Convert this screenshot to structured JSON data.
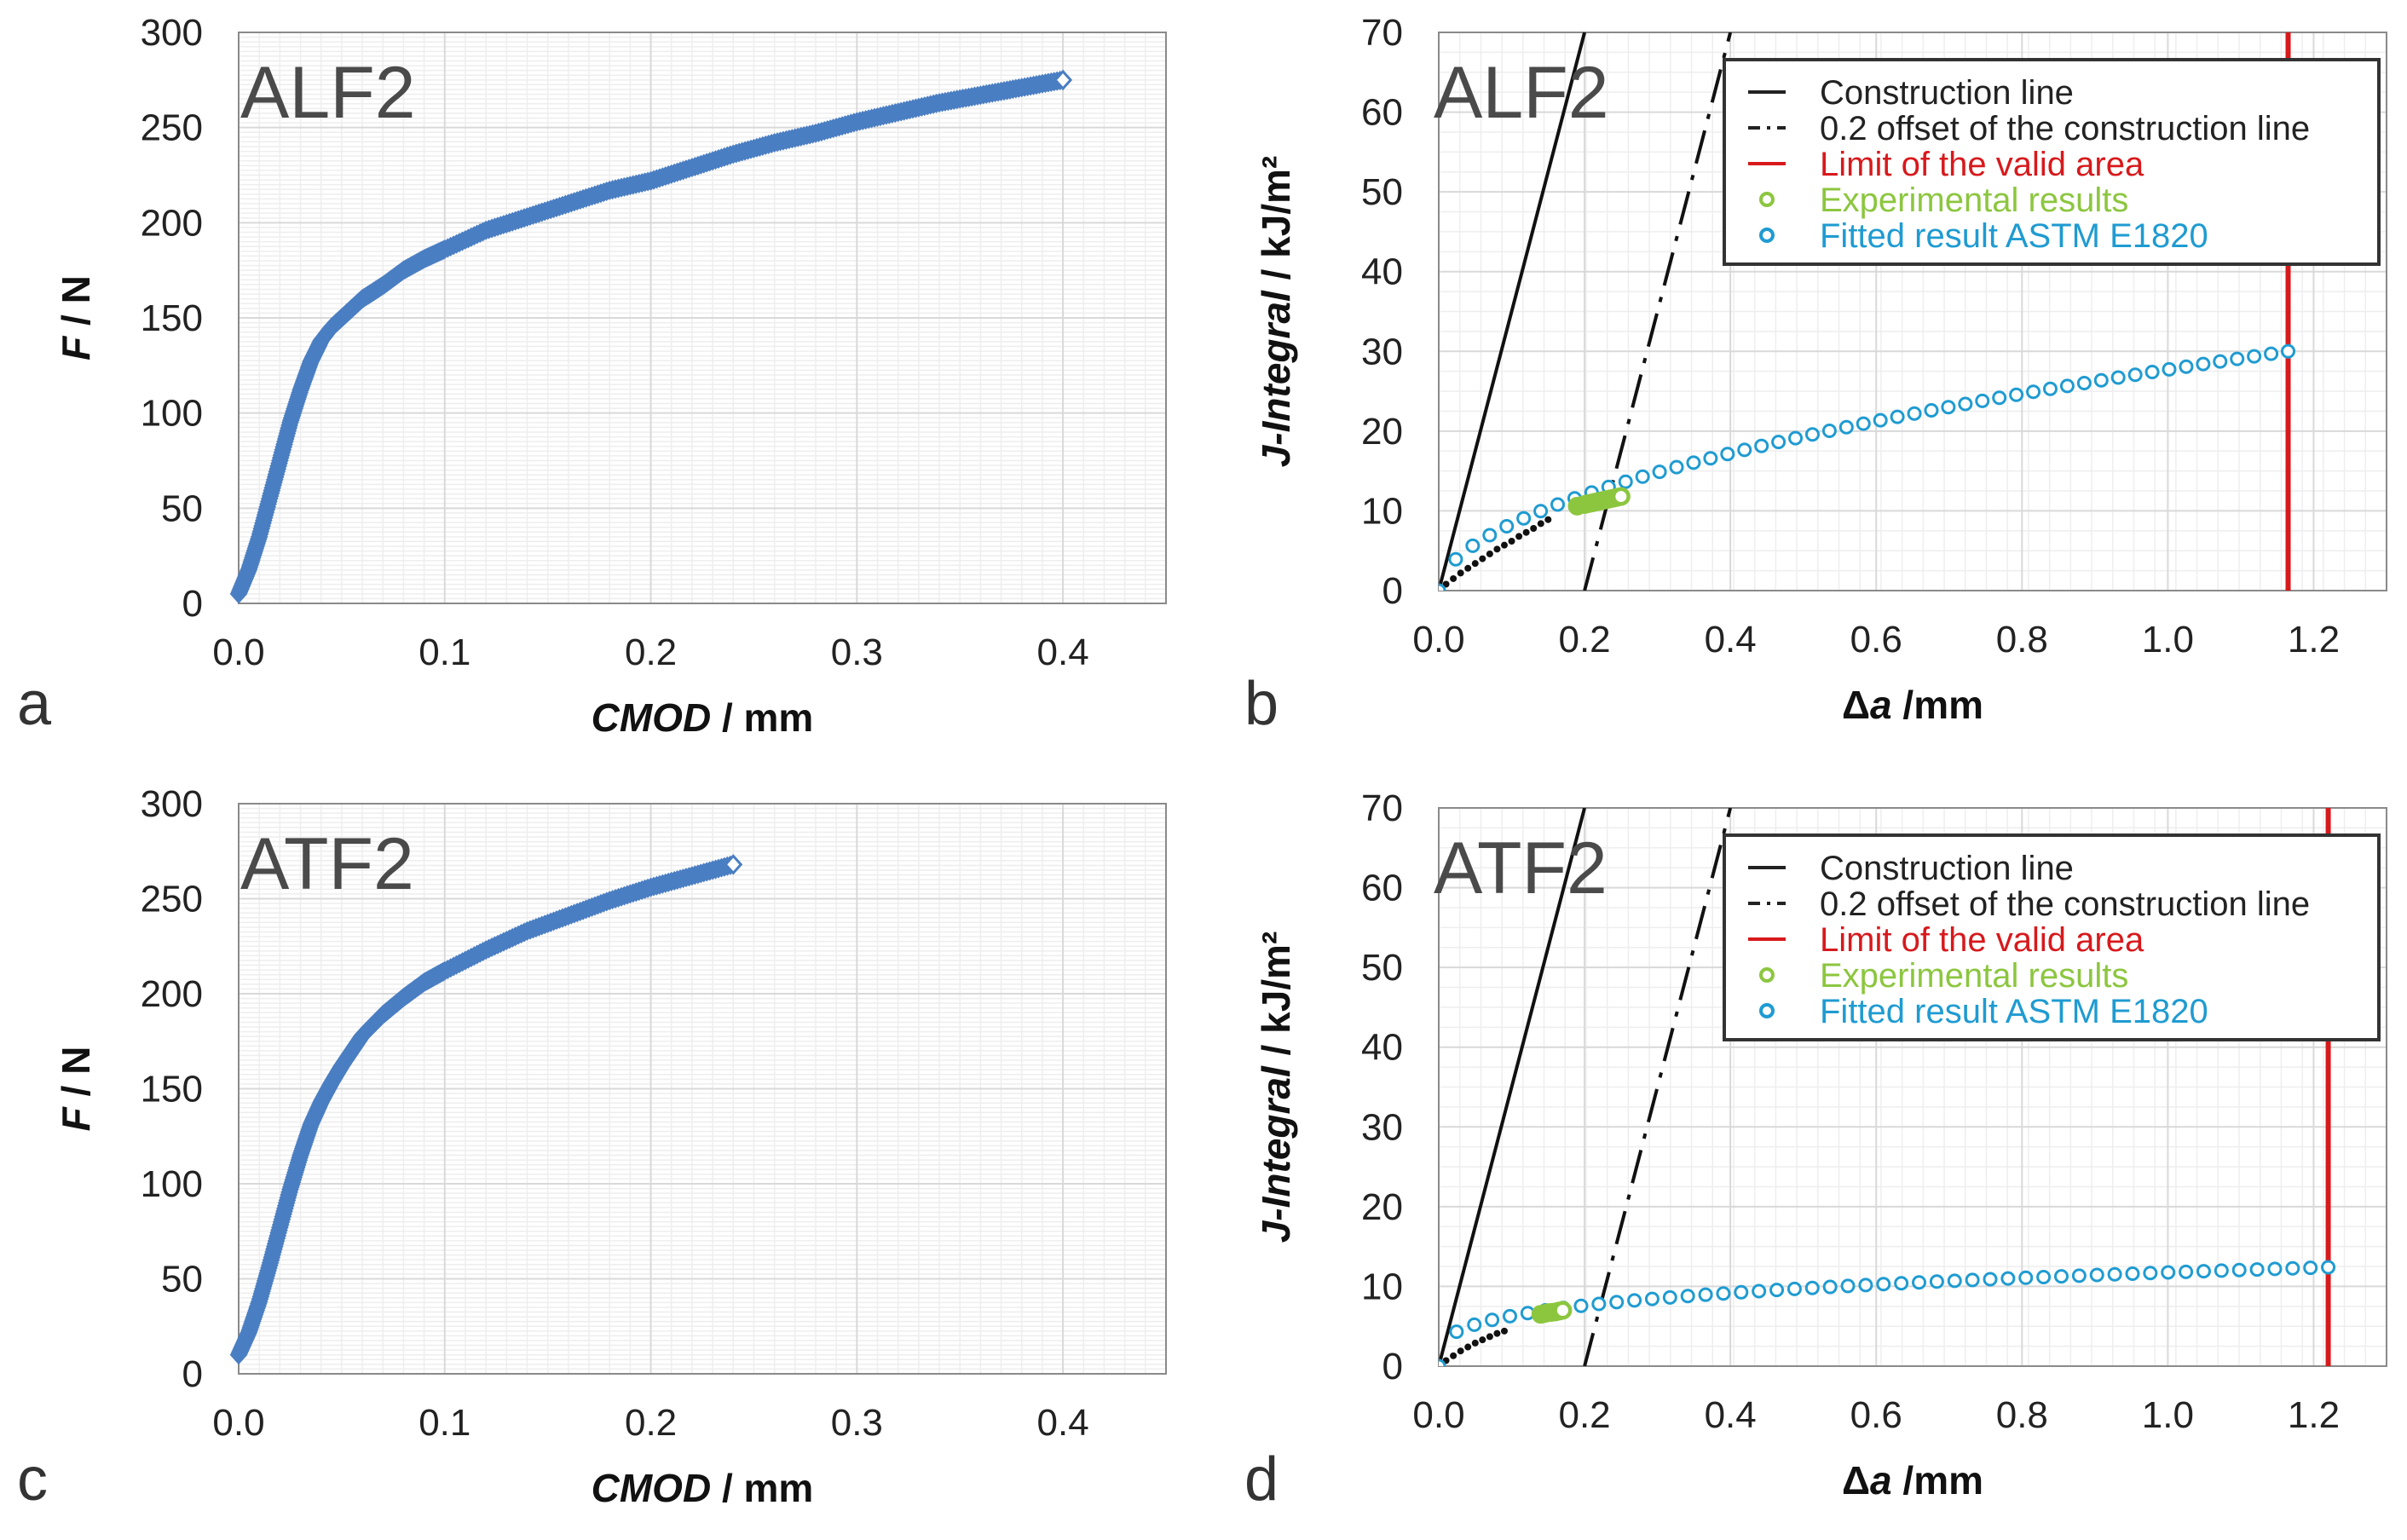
{
  "colors": {
    "fd_curve": "#4a7ec2",
    "construction": "#111111",
    "limit": "#d7191c",
    "experimental": "#8cc63f",
    "fitted": "#1f9bd1",
    "grid_major": "#d9d9d9",
    "grid_minor": "#eeeeee"
  },
  "chart_data": [
    {
      "panel": "a",
      "type": "scatter",
      "specimen": "ALF2",
      "xlabel_italic": "CMOD",
      "xlabel_rest": " / mm",
      "ylabel_italic": "F",
      "ylabel_rest": " / N",
      "xlim": [
        0,
        0.45
      ],
      "ylim": [
        0,
        300
      ],
      "xticks": [
        "0.0",
        "0.1",
        "0.2",
        "0.3",
        "0.4"
      ],
      "yticks": [
        "0",
        "50",
        "100",
        "150",
        "200",
        "250",
        "300"
      ],
      "grid": true,
      "series": [
        {
          "marker": "diamond",
          "x": [
            0,
            0.005,
            0.01,
            0.015,
            0.02,
            0.025,
            0.03,
            0.035,
            0.04,
            0.045,
            0.05,
            0.055,
            0.06,
            0.07,
            0.08,
            0.09,
            0.1,
            0.12,
            0.14,
            0.16,
            0.18,
            0.2,
            0.22,
            0.24,
            0.26,
            0.28,
            0.3,
            0.32,
            0.34,
            0.36,
            0.38,
            0.4
          ],
          "y": [
            5,
            18,
            35,
            55,
            75,
            95,
            112,
            127,
            138,
            145,
            150,
            155,
            160,
            167,
            175,
            181,
            186,
            196,
            203,
            210,
            217,
            222,
            229,
            236,
            242,
            247,
            253,
            258,
            263,
            267,
            271,
            275
          ]
        }
      ]
    },
    {
      "panel": "b",
      "type": "scatter",
      "specimen": "ALF2",
      "xlabel_symbol": "Δ",
      "xlabel_italic": "a",
      "xlabel_rest": " /mm",
      "ylabel_italic": "J-Integral",
      "ylabel_rest": " / kJ/m²",
      "xlim": [
        0,
        1.3
      ],
      "ylim": [
        0,
        70
      ],
      "xticks": [
        "0.0",
        "0.2",
        "0.4",
        "0.6",
        "0.8",
        "1.0",
        "1.2"
      ],
      "yticks": [
        "0",
        "10",
        "20",
        "30",
        "40",
        "50",
        "60",
        "70"
      ],
      "grid": true,
      "legend": {
        "position": "top-right",
        "entries": [
          {
            "label": "Construction line",
            "style": "solid"
          },
          {
            "label": "0.2 offset of the construction line",
            "style": "dashdot"
          },
          {
            "label": "Limit of the valid area",
            "style": "red"
          },
          {
            "label": "Experimental results",
            "style": "green-circle"
          },
          {
            "label": "Fitted result ASTM E1820",
            "style": "blue-circle"
          }
        ]
      },
      "construction_line": {
        "slope": 350,
        "offset": 0.2
      },
      "limit_x": 1.165,
      "experimental": {
        "x": [
          0.19,
          0.2,
          0.205,
          0.21,
          0.215,
          0.22,
          0.225,
          0.23,
          0.235,
          0.24,
          0.245,
          0.25
        ],
        "y": [
          10.6,
          10.8,
          10.9,
          11.0,
          11.1,
          11.2,
          11.3,
          11.4,
          11.5,
          11.6,
          11.7,
          11.8
        ]
      },
      "fit": {
        "C": 27.72,
        "n": 0.52,
        "x_end": 1.165,
        "count": 50
      },
      "blowdown": {
        "x": [
          0.01,
          0.02,
          0.03,
          0.04,
          0.05,
          0.06,
          0.07,
          0.08,
          0.09,
          0.1,
          0.11,
          0.12,
          0.13,
          0.14,
          0.15
        ],
        "y": [
          0.8,
          1.5,
          2.2,
          2.8,
          3.4,
          4.0,
          4.6,
          5.2,
          5.7,
          6.2,
          6.8,
          7.3,
          7.8,
          8.4,
          8.9
        ]
      }
    },
    {
      "panel": "c",
      "type": "scatter",
      "specimen": "ATF2",
      "xlabel_italic": "CMOD",
      "xlabel_rest": " / mm",
      "ylabel_italic": "F",
      "ylabel_rest": " / N",
      "xlim": [
        0,
        0.45
      ],
      "ylim": [
        0,
        300
      ],
      "xticks": [
        "0.0",
        "0.1",
        "0.2",
        "0.3",
        "0.4"
      ],
      "yticks": [
        "0",
        "50",
        "100",
        "150",
        "200",
        "250",
        "300"
      ],
      "grid": true,
      "series": [
        {
          "marker": "diamond",
          "x": [
            0,
            0.005,
            0.01,
            0.015,
            0.02,
            0.025,
            0.03,
            0.035,
            0.04,
            0.045,
            0.05,
            0.055,
            0.06,
            0.07,
            0.08,
            0.09,
            0.1,
            0.12,
            0.14,
            0.16,
            0.18,
            0.2,
            0.22,
            0.24
          ],
          "y": [
            10,
            22,
            38,
            57,
            77,
            97,
            115,
            131,
            143,
            153,
            162,
            170,
            178,
            189,
            198,
            206,
            212,
            223,
            233,
            241,
            249,
            256,
            262,
            268
          ]
        }
      ]
    },
    {
      "panel": "d",
      "type": "scatter",
      "specimen": "ATF2",
      "xlabel_symbol": "Δ",
      "xlabel_italic": "a",
      "xlabel_rest": "  /mm",
      "ylabel_italic": "J-Integral",
      "ylabel_rest": " / kJ/m²",
      "xlim": [
        0,
        1.3
      ],
      "ylim": [
        0,
        70
      ],
      "xticks": [
        "0.0",
        "0.2",
        "0.4",
        "0.6",
        "0.8",
        "1.0",
        "1.2"
      ],
      "yticks": [
        "0",
        "10",
        "20",
        "30",
        "40",
        "50",
        "60",
        "70"
      ],
      "grid": true,
      "legend": {
        "position": "top-right",
        "entries": [
          {
            "label": "Construction line",
            "style": "solid"
          },
          {
            "label": "0.2 offset of the construction line",
            "style": "dashdot"
          },
          {
            "label": "Limit of the valid area",
            "style": "red"
          },
          {
            "label": "Experimental results",
            "style": "green-circle"
          },
          {
            "label": "Fitted result ASTM E1820",
            "style": "blue-circle"
          }
        ]
      },
      "construction_line": {
        "slope": 350,
        "offset": 0.2
      },
      "limit_x": 1.22,
      "experimental": {
        "x": [
          0.14,
          0.145,
          0.15,
          0.155,
          0.16,
          0.165,
          0.17
        ],
        "y": [
          6.5,
          6.6,
          6.7,
          6.75,
          6.8,
          6.9,
          7.0
        ]
      },
      "fit": {
        "C": 11.75,
        "n": 0.27,
        "x_end": 1.22,
        "count": 50
      },
      "blowdown": {
        "x": [
          0.01,
          0.02,
          0.03,
          0.04,
          0.05,
          0.06,
          0.07,
          0.08,
          0.09
        ],
        "y": [
          0.7,
          1.3,
          1.9,
          2.4,
          2.9,
          3.3,
          3.7,
          4.1,
          4.4
        ]
      }
    }
  ]
}
